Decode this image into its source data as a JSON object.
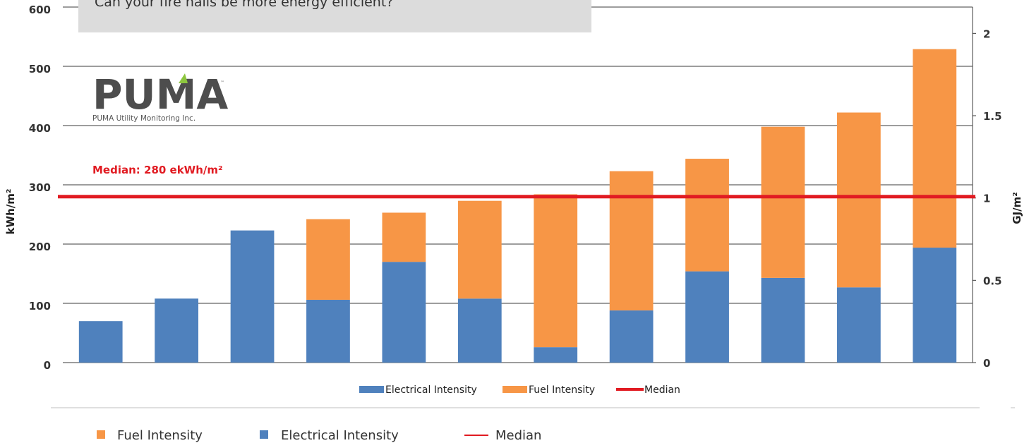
{
  "callout": {
    "text": "Can your fire halls be more energy efficient?"
  },
  "logo": {
    "word": "PUMA",
    "tm": "™",
    "tagline": "PUMA Utility Monitoring Inc."
  },
  "colors": {
    "electrical": "#4f81bd",
    "fuel": "#f79646",
    "median": "#e11b22",
    "grid": "#3b3b3b",
    "callout_bg": "#dcdcdc"
  },
  "chart_data": {
    "type": "bar",
    "stacked": true,
    "title": "",
    "ylabel": "kWh/m²",
    "y2label": "GJ/m²",
    "ylim": [
      0,
      600
    ],
    "yticks": [
      0,
      100,
      200,
      300,
      400,
      500,
      600
    ],
    "y2lim": [
      0,
      2.16
    ],
    "y2ticks": [
      {
        "value": 0,
        "label": "0"
      },
      {
        "value": 0.5,
        "label": "0.5"
      },
      {
        "value": 1,
        "label": "1"
      },
      {
        "value": 1.5,
        "label": "1.5"
      },
      {
        "value": 2,
        "label": "2"
      }
    ],
    "grid": true,
    "bar_count": 12,
    "series": [
      {
        "name": "Electrical Intensity",
        "values": [
          70,
          108,
          223,
          106,
          170,
          108,
          26,
          88,
          154,
          143,
          127,
          194
        ]
      },
      {
        "name": "Fuel Intensity",
        "values": [
          0,
          0,
          0,
          136,
          83,
          165,
          258,
          235,
          190,
          255,
          295,
          335
        ]
      }
    ],
    "median": {
      "value": 280,
      "label": "Median: 280 ekWh/m²",
      "name": "Median"
    },
    "legend": {
      "placement": "bottom",
      "items": [
        "Electrical Intensity",
        "Fuel Intensity",
        "Median"
      ]
    },
    "bottom_legend": {
      "items": [
        "Fuel Intensity",
        "Electrical Intensity",
        "Median"
      ]
    }
  }
}
